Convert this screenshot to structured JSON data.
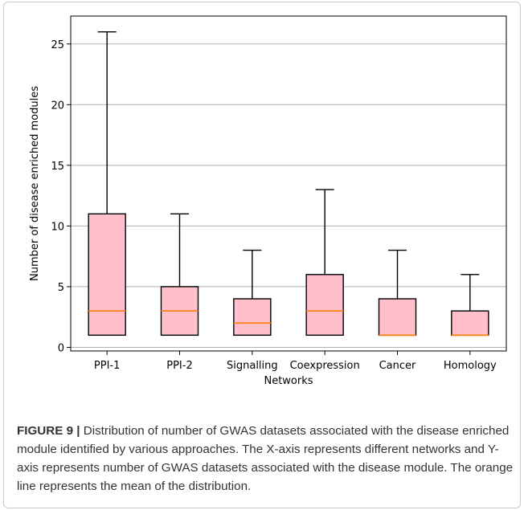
{
  "chart_data": {
    "type": "box",
    "xlabel": "Networks",
    "ylabel": "Number of disease enriched modules",
    "ylim": [
      -0.3,
      27.3
    ],
    "yticks": [
      0,
      5,
      10,
      15,
      20,
      25
    ],
    "grid": "horizontal",
    "categories": [
      "PPI-1",
      "PPI-2",
      "Signalling",
      "Coexpression",
      "Cancer",
      "Homology"
    ],
    "boxes": [
      {
        "min": 1,
        "q1": 1,
        "median": 3,
        "q3": 11,
        "max": 26
      },
      {
        "min": 1,
        "q1": 1,
        "median": 3,
        "q3": 5,
        "max": 11
      },
      {
        "min": 1,
        "q1": 1,
        "median": 2,
        "q3": 4,
        "max": 8
      },
      {
        "min": 1,
        "q1": 1,
        "median": 3,
        "q3": 6,
        "max": 13
      },
      {
        "min": 1,
        "q1": 1,
        "median": 1,
        "q3": 4,
        "max": 8
      },
      {
        "min": 1,
        "q1": 1,
        "median": 1,
        "q3": 3,
        "max": 6
      }
    ],
    "colors": {
      "box_fill": "#ffc0cb",
      "median_line": "#ff7f0e",
      "grid": "#b0b0b0"
    }
  },
  "caption": {
    "label": "FIGURE 9 |",
    "text": "Distribution of number of GWAS datasets associated with the disease enriched module identified by various approaches. The X-axis represents different networks and Y-axis represents number of GWAS datasets associated with the disease module. The orange line represents the mean of the distribution."
  }
}
